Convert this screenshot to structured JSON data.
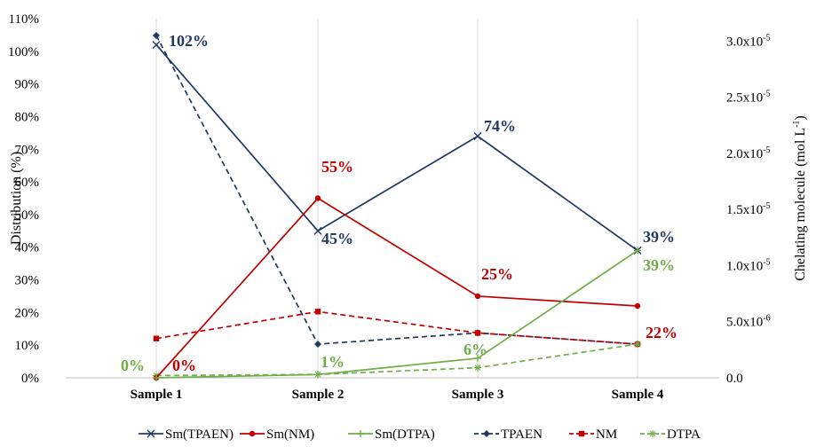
{
  "chart_data": {
    "type": "line",
    "categories": [
      "Sample 1",
      "Sample 2",
      "Sample 3",
      "Sample 4"
    ],
    "ylabel": "Distribution (%)",
    "y2label": "Chelating molecule  (mol L-1)",
    "y2label_base": "Chelating molecule  (mol L",
    "y2label_sup": "-1",
    "y2label_tail": ")",
    "ylim": [
      0,
      110
    ],
    "y2lim": [
      0,
      3.2e-05
    ],
    "yticks": [
      "0%",
      "10%",
      "20%",
      "30%",
      "40%",
      "50%",
      "60%",
      "70%",
      "80%",
      "90%",
      "100%",
      "110%"
    ],
    "y2ticks": [
      {
        "base": "0.0",
        "sup": ""
      },
      {
        "base": "5.0x10",
        "sup": "-6"
      },
      {
        "base": "1.0x10",
        "sup": "-5"
      },
      {
        "base": "1.5x10",
        "sup": "-5"
      },
      {
        "base": "2.0x10",
        "sup": "-5"
      },
      {
        "base": "2.5x10",
        "sup": "-5"
      },
      {
        "base": "3.0x10",
        "sup": "-5"
      }
    ],
    "grid": "vertical",
    "legend_position": "bottom",
    "series": [
      {
        "name": "Sm(TPAEN)",
        "axis": "left",
        "values": [
          102,
          45,
          74,
          39
        ],
        "color": "#1f3864",
        "dash": "solid",
        "marker": "x",
        "labels": [
          "102%",
          "45%",
          "74%",
          "39%"
        ]
      },
      {
        "name": "Sm(NM)",
        "axis": "left",
        "values": [
          0,
          55,
          25,
          22
        ],
        "color": "#c00000",
        "dash": "solid",
        "marker": "circle",
        "labels": [
          "0%",
          "55%",
          "25%",
          "22%"
        ]
      },
      {
        "name": "Sm(DTPA)",
        "axis": "left",
        "values": [
          0,
          1,
          6,
          39
        ],
        "color": "#70ad47",
        "dash": "solid",
        "marker": "plus",
        "labels": [
          "0%",
          "1%",
          "6%",
          "39%"
        ]
      },
      {
        "name": "TPAEN",
        "axis": "right",
        "values": [
          3.05e-05,
          3e-06,
          4e-06,
          3e-06
        ],
        "color": "#1f3864",
        "dash": "dashed",
        "marker": "diamond",
        "labels": [
          "",
          "",
          "",
          ""
        ]
      },
      {
        "name": "NM",
        "axis": "right",
        "values": [
          3.5e-06,
          5.9e-06,
          4e-06,
          3e-06
        ],
        "color": "#c00000",
        "dash": "dashed",
        "marker": "square",
        "labels": [
          "",
          "",
          "",
          ""
        ]
      },
      {
        "name": "DTPA",
        "axis": "right",
        "values": [
          2e-07,
          3e-07,
          9e-07,
          3e-06
        ],
        "color": "#70ad47",
        "dash": "dashed",
        "marker": "star",
        "labels": [
          "",
          "",
          "",
          ""
        ]
      }
    ]
  }
}
